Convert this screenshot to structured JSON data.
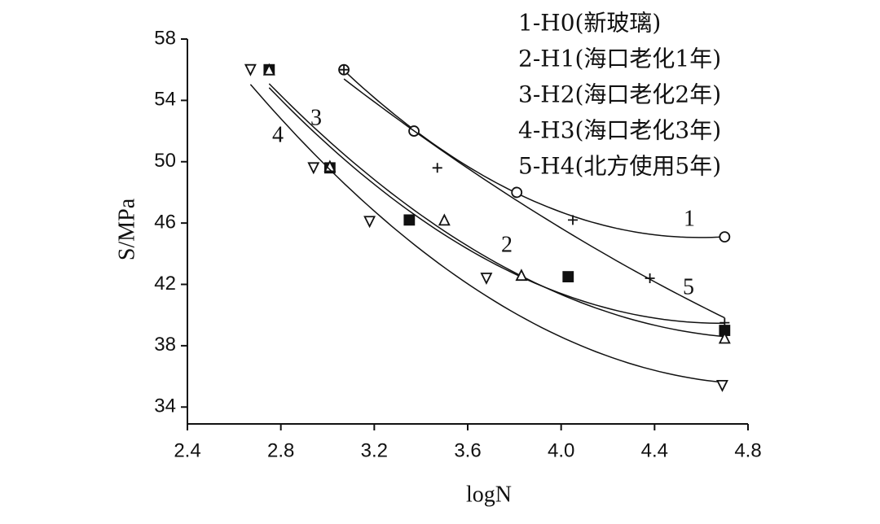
{
  "chart_data": {
    "type": "scatter",
    "x_label": "logN",
    "y_label": "S/MPa",
    "xlim": [
      2.4,
      4.8
    ],
    "ylim": [
      32.9,
      58
    ],
    "xticks": [
      2.4,
      2.8,
      3.2,
      3.6,
      {
        "value": 4,
        "label": "4.0"
      },
      4.4,
      4.8
    ],
    "yticks": [
      34,
      38,
      42,
      46,
      50,
      54,
      58
    ],
    "grid": false,
    "legend": "upper right",
    "series": [
      {
        "name": "1-H0(新玻璃)",
        "curve_label": "1",
        "marker": "circle",
        "color": "#111111",
        "x": [
          3.07,
          3.37,
          3.81,
          4.7
        ],
        "values": [
          56,
          52,
          48,
          45.1
        ]
      },
      {
        "name": "2-H1(海口老化1年)",
        "curve_label": "2",
        "marker": "square",
        "color": "#111111",
        "x": [
          2.75,
          3.01,
          3.35,
          4.03,
          4.7
        ],
        "values": [
          56,
          49.6,
          46.2,
          42.5,
          39.0
        ]
      },
      {
        "name": "3-H2(海口老化2年)",
        "curve_label": "3",
        "marker": "triangle",
        "color": "#111111",
        "x": [
          2.75,
          3.01,
          3.5,
          3.83,
          4.7
        ],
        "values": [
          56,
          49.7,
          46.2,
          42.6,
          38.5
        ]
      },
      {
        "name": "4-H3(海口老化3年)",
        "curve_label": "4",
        "marker": "triangle-down",
        "color": "#111111",
        "x": [
          2.67,
          2.94,
          3.18,
          3.68,
          4.69
        ],
        "values": [
          56,
          49.6,
          46.1,
          42.4,
          35.4
        ]
      },
      {
        "name": "5-H4(北方使用5年)",
        "curve_label": "5",
        "marker": "plus",
        "color": "#111111",
        "x": [
          3.07,
          3.47,
          4.05,
          4.38,
          4.7
        ],
        "values": [
          56,
          49.6,
          46.2,
          42.4,
          39.5
        ]
      }
    ]
  }
}
